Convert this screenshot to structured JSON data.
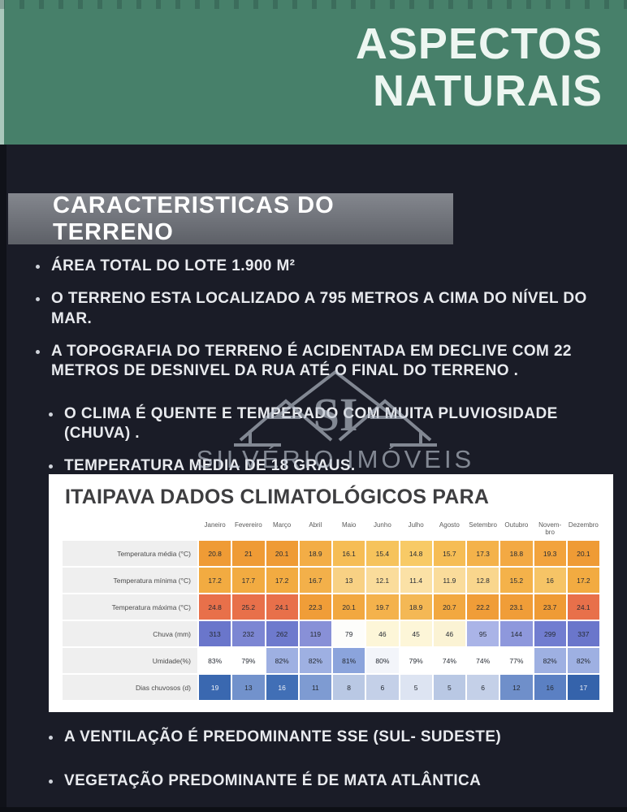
{
  "palette": {
    "header_green": "#47806a",
    "background_navy": "#1a1c27",
    "banner_gray": "#6b6e75",
    "card_white": "#ffffff"
  },
  "header": {
    "title_line1": "ASPECTOS",
    "title_line2": "NATURAIS"
  },
  "section": {
    "title": "CARACTERISTICAS DO TERRENO"
  },
  "terrain_bullets": [
    {
      "text": "ÁREA TOTAL DO LOTE 1.900 M²"
    },
    {
      "text": "O TERRENO ESTA LOCALIZADO  A 795 METROS A CIMA DO NÍVEL DO MAR."
    },
    {
      "text": "A TOPOGRAFIA DO TERRENO É ACIDENTADA EM DECLIVE  COM 22 METROS DE DESNIVEL DA RUA ATÉ O FINAL DO TERRENO ."
    },
    {
      "text": "O CLIMA  É QUENTE E TEMPERADO COM MUITA PLUVIOSIDADE (CHUVA) ."
    },
    {
      "text": "TEMPERATURA MEDIA DE 18 GRAUS."
    }
  ],
  "watermark": {
    "initials": "SI",
    "name": "SILVÉRIO IMÓVEIS"
  },
  "chart_data": {
    "type": "heatmap",
    "title": "ITAIPAVA DADOS CLIMATOLÓGICOS PARA",
    "categories": [
      "Janeiro",
      "Fevereiro",
      "Março",
      "Abril",
      "Maio",
      "Junho",
      "Julho",
      "Agosto",
      "Setembro",
      "Outubro",
      "Novem-\nbro",
      "Dezembro"
    ],
    "rows": [
      {
        "label": "Temperatura média (°C)",
        "values": [
          "20.8",
          "21",
          "20.1",
          "18.9",
          "16.1",
          "15.4",
          "14.8",
          "15.7",
          "17.3",
          "18.8",
          "19.3",
          "20.1"
        ],
        "colors": [
          "#ef9b35",
          "#ef9b35",
          "#ef9b35",
          "#f3ad46",
          "#f6bd55",
          "#f6c35c",
          "#f8ca66",
          "#f6bd55",
          "#f4b24a",
          "#f3a943",
          "#f2a33d",
          "#ef9b35"
        ]
      },
      {
        "label": "Temperatura mínima (°C)",
        "values": [
          "17.2",
          "17.7",
          "17.2",
          "16.7",
          "13",
          "12.1",
          "11.4",
          "11.9",
          "12.8",
          "15.2",
          "16",
          "17.2"
        ],
        "colors": [
          "#f2ab41",
          "#f2ab41",
          "#f2ab41",
          "#f3b04a",
          "#f8d184",
          "#fadc9b",
          "#fbe1a6",
          "#fadc9b",
          "#f9d68d",
          "#f4b24a",
          "#f6c466",
          "#f2ab41"
        ]
      },
      {
        "label": "Temperatura máxima (°C)",
        "values": [
          "24.8",
          "25.2",
          "24.1",
          "22.3",
          "20.1",
          "19.7",
          "18.9",
          "20.7",
          "22.2",
          "23.1",
          "23.7",
          "24.1"
        ],
        "colors": [
          "#e8704a",
          "#e8704a",
          "#e8704a",
          "#f09d38",
          "#f2a840",
          "#f4b24c",
          "#f4b855",
          "#f2a840",
          "#f09d38",
          "#f09d38",
          "#ef9b35",
          "#e8704a"
        ]
      },
      {
        "label": "Chuva (mm)",
        "values": [
          "313",
          "232",
          "262",
          "119",
          "79",
          "46",
          "45",
          "46",
          "95",
          "144",
          "299",
          "337"
        ],
        "colors": [
          "#6a76cb",
          "#7c86d3",
          "#6e7acd",
          "#8890d7",
          "#fdfdfb",
          "#fdf6d8",
          "#fdf6d8",
          "#fbf3d4",
          "#aab4e7",
          "#8e98dc",
          "#717dd0",
          "#6a76cb"
        ]
      },
      {
        "label": "Umidade(%)",
        "values": [
          "83%",
          "79%",
          "82%",
          "82%",
          "81%",
          "80%",
          "79%",
          "74%",
          "74%",
          "77%",
          "82%",
          "82%"
        ],
        "colors": [
          "#ffffff",
          "#ffffff",
          "#9eb0e2",
          "#9eb0e2",
          "#8ba4dc",
          "#f3f5fa",
          "#ffffff",
          "#ffffff",
          "#ffffff",
          "#ffffff",
          "#9eb0e2",
          "#9eb0e2"
        ]
      },
      {
        "label": "Dias chuvosos (d)",
        "values": [
          "19",
          "13",
          "16",
          "11",
          "8",
          "6",
          "5",
          "5",
          "6",
          "12",
          "16",
          "17"
        ],
        "colors": [
          "#3a68b0",
          "#7292cc",
          "#416fb6",
          "#7e9bd2",
          "#b9c8e4",
          "#c4d0e8",
          "#dde4f2",
          "#b9c8e4",
          "#c4d0e8",
          "#6f8fca",
          "#5b80c3",
          "#3563ab"
        ]
      }
    ]
  },
  "bottom_bullets": [
    {
      "text": "A VENTILAÇÃO É PREDOMINANTE SSE (SUL- SUDESTE)"
    },
    {
      "text": "VEGETAÇÃO PREDOMINANTE É DE MATA  ATLÂNTICA"
    }
  ]
}
